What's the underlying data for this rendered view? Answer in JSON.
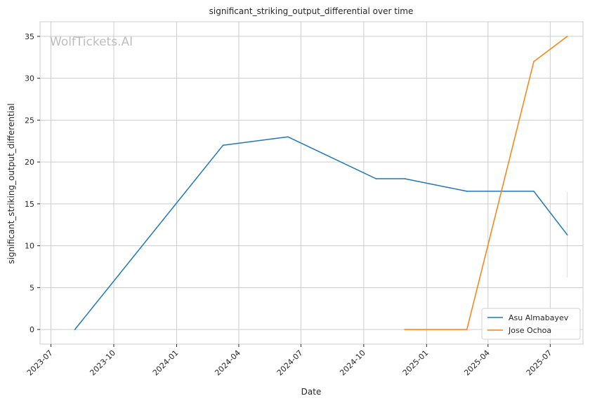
{
  "chart_data": {
    "type": "line",
    "title": "significant_striking_output_differential over time",
    "xlabel": "Date",
    "ylabel": "significant_striking_output_differential",
    "watermark": "WolfTickets.AI",
    "x_ticks": [
      "2023-07",
      "2023-10",
      "2024-01",
      "2024-04",
      "2024-07",
      "2024-10",
      "2025-01",
      "2025-04",
      "2025-07"
    ],
    "y_ticks": [
      0,
      5,
      10,
      15,
      20,
      25,
      30,
      35
    ],
    "xlim": [
      "2023-06-15",
      "2025-08-18"
    ],
    "ylim": [
      -1.75,
      36.75
    ],
    "grid": true,
    "legend_position": "bottom-right",
    "series": [
      {
        "name": "Asu Almabayev",
        "color": "#1f77b4",
        "points": [
          {
            "x": "2023-08-05",
            "y": 0
          },
          {
            "x": "2024-03-09",
            "y": 22
          },
          {
            "x": "2024-06-12",
            "y": 23
          },
          {
            "x": "2024-10-19",
            "y": 18
          },
          {
            "x": "2024-11-30",
            "y": 18
          },
          {
            "x": "2025-03-01",
            "y": 16.5
          },
          {
            "x": "2025-06-07",
            "y": 16.5
          },
          {
            "x": "2025-07-26",
            "y": 11.3
          }
        ],
        "error_bar": {
          "x": "2025-07-26",
          "low": 6.2,
          "high": 16.4
        }
      },
      {
        "name": "Jose Ochoa",
        "color": "#ff7f0e",
        "points": [
          {
            "x": "2024-11-30",
            "y": 0
          },
          {
            "x": "2025-03-01",
            "y": 0
          },
          {
            "x": "2025-06-07",
            "y": 32
          },
          {
            "x": "2025-07-26",
            "y": 35
          }
        ]
      }
    ]
  }
}
